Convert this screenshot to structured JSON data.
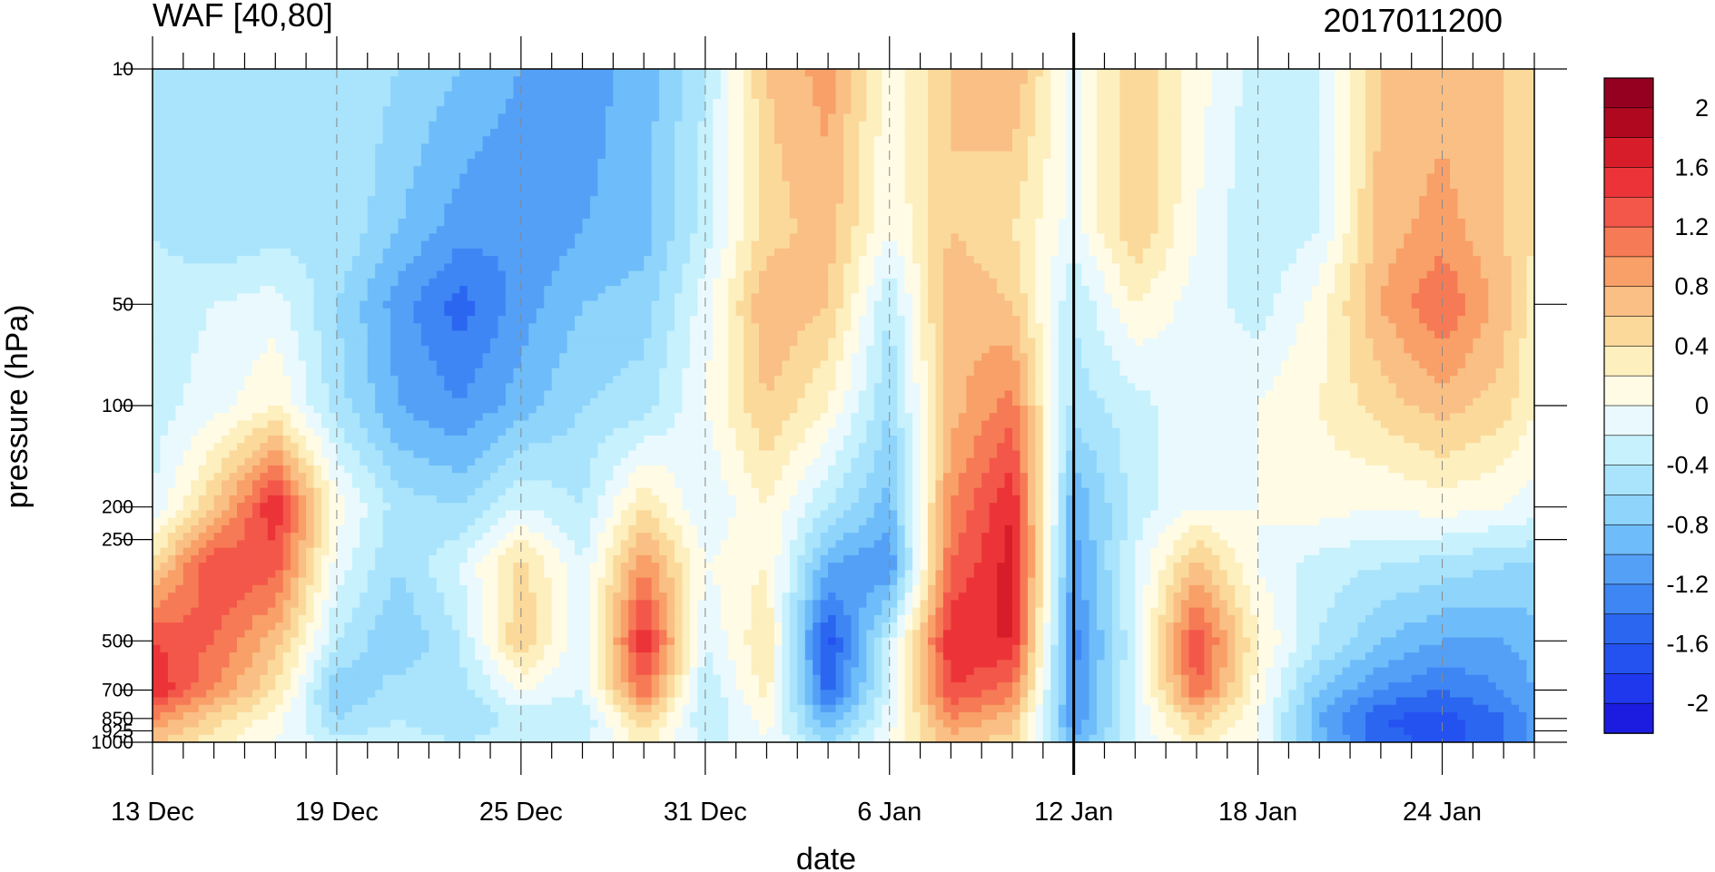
{
  "chart_data": {
    "type": "heatmap",
    "title_left": "WAF [40,80]",
    "title_right": "2017011200",
    "xlabel": "date",
    "ylabel": "pressure (hPa)",
    "x_ticks": [
      "13 Dec",
      "19 Dec",
      "25 Dec",
      "31 Dec",
      "6 Jan",
      "12 Jan",
      "18 Jan",
      "24 Jan"
    ],
    "x_tick_days": [
      0,
      6,
      12,
      18,
      24,
      30,
      36,
      42
    ],
    "x_range_days": [
      0,
      45
    ],
    "marked_date_day": 30,
    "y_ticks": [
      "10",
      "50",
      "100",
      "200",
      "250",
      "500",
      "700",
      "850",
      "925",
      "1000"
    ],
    "y_tick_values": [
      10,
      50,
      100,
      200,
      250,
      500,
      700,
      850,
      925,
      1000
    ],
    "y_range": [
      10,
      1000
    ],
    "y_scale": "log",
    "y_inverted": true,
    "colorbar_labels": [
      "2",
      "1.6",
      "1.2",
      "0.8",
      "0.4",
      "0",
      "-0.4",
      "-0.8",
      "-1.2",
      "-1.6",
      "-2"
    ],
    "colorbar_levels": [
      -2.0,
      -1.8,
      -1.6,
      -1.4,
      -1.2,
      -1.0,
      -0.8,
      -0.6,
      -0.4,
      -0.2,
      0,
      0.2,
      0.4,
      0.6,
      0.8,
      1.0,
      1.2,
      1.4,
      1.6,
      1.8,
      2.0
    ],
    "colorbar_colors": [
      "#1b1ce0",
      "#1f38ee",
      "#2452f0",
      "#2b66f0",
      "#3f86f5",
      "#55a0f7",
      "#6ebcf9",
      "#8ed4fb",
      "#aae4fc",
      "#c6f1fd",
      "#eaf9fd",
      "#fffbe5",
      "#fdefbe",
      "#fbd99a",
      "#f9bf84",
      "#f8a068",
      "#f67a55",
      "#f3574a",
      "#ec3438",
      "#d81d2a",
      "#b0091f",
      "#950020"
    ],
    "grid_days": [
      0,
      2,
      4,
      6,
      8,
      10,
      12,
      14,
      16,
      18,
      20,
      22,
      24,
      26,
      28,
      30,
      32,
      34,
      36,
      38,
      40,
      42,
      44,
      45
    ],
    "grid_pressures": [
      10,
      30,
      50,
      100,
      200,
      300,
      500,
      700,
      850,
      1000
    ],
    "values": [
      [
        -0.4,
        -0.6,
        -0.6,
        -0.4,
        -0.6,
        -0.8,
        -1.0,
        -1.1,
        -0.9,
        -0.4,
        0.6,
        0.9,
        0.1,
        0.6,
        0.8,
        -0.1,
        0.6,
        0.1,
        -0.3,
        -0.2,
        0.6,
        0.7,
        0.6,
        0.5
      ],
      [
        -0.4,
        -0.6,
        -0.5,
        -0.4,
        -0.8,
        -1.1,
        -1.2,
        -1.0,
        -0.9,
        -0.3,
        0.5,
        0.7,
        0.0,
        0.6,
        0.4,
        -0.1,
        0.6,
        0.0,
        -0.4,
        -0.2,
        0.7,
        0.9,
        0.6,
        0.4
      ],
      [
        -0.3,
        -0.2,
        -0.1,
        -0.6,
        -1.1,
        -1.5,
        -1.1,
        -0.8,
        -0.7,
        -0.1,
        0.8,
        0.6,
        -0.4,
        0.8,
        0.6,
        -0.4,
        0.2,
        -0.1,
        -0.3,
        0.1,
        0.8,
        1.2,
        0.7,
        0.3
      ],
      [
        -0.3,
        -0.1,
        0.2,
        -0.5,
        -1.0,
        -1.2,
        -0.9,
        -0.6,
        -0.5,
        0.0,
        0.6,
        0.2,
        -0.6,
        0.7,
        1.1,
        -0.5,
        -0.3,
        0.0,
        0.0,
        0.2,
        0.5,
        0.7,
        0.5,
        0.2
      ],
      [
        -0.2,
        0.6,
        1.6,
        0.1,
        -0.5,
        -0.6,
        -0.2,
        -0.4,
        0.4,
        -0.2,
        0.2,
        -0.4,
        -0.9,
        1.0,
        1.6,
        -1.0,
        -0.3,
        0.0,
        0.0,
        0.1,
        0.0,
        0.1,
        0.0,
        -0.1
      ],
      [
        0.5,
        1.4,
        1.3,
        -0.1,
        -0.6,
        -0.2,
        0.5,
        -0.2,
        1.0,
        0.0,
        0.2,
        -1.0,
        -1.2,
        1.2,
        1.7,
        -1.1,
        -0.2,
        0.7,
        0.0,
        -0.3,
        -0.4,
        -0.5,
        -0.6,
        -0.6
      ],
      [
        1.4,
        1.2,
        0.7,
        -0.4,
        -0.8,
        -0.4,
        0.6,
        -0.2,
        1.6,
        -0.2,
        0.4,
        -1.7,
        -0.3,
        1.6,
        1.6,
        -1.3,
        -0.2,
        1.4,
        0.2,
        -0.4,
        -0.8,
        -1.0,
        -1.0,
        -0.9
      ],
      [
        1.6,
        1.0,
        0.4,
        -0.8,
        -0.5,
        -0.5,
        0.0,
        -0.2,
        1.2,
        -0.4,
        0.3,
        -1.5,
        -0.2,
        1.4,
        1.1,
        -1.2,
        -0.2,
        1.2,
        0.1,
        -0.8,
        -1.2,
        -1.4,
        -1.2,
        -1.0
      ],
      [
        1.0,
        0.5,
        0.1,
        -0.6,
        -0.4,
        -0.6,
        -0.3,
        -0.4,
        0.6,
        -0.4,
        0.1,
        -1.0,
        -0.1,
        1.0,
        0.7,
        -1.2,
        -0.2,
        0.6,
        0.0,
        -1.0,
        -1.6,
        -1.7,
        -1.4,
        -1.1
      ],
      [
        0.6,
        0.3,
        0.0,
        -0.3,
        -0.3,
        -0.4,
        -0.3,
        -0.3,
        0.3,
        -0.3,
        0.0,
        -0.6,
        0.0,
        0.7,
        0.5,
        -1.0,
        -0.2,
        0.3,
        0.0,
        -0.9,
        -1.5,
        -1.7,
        -1.4,
        -1.1
      ]
    ]
  }
}
